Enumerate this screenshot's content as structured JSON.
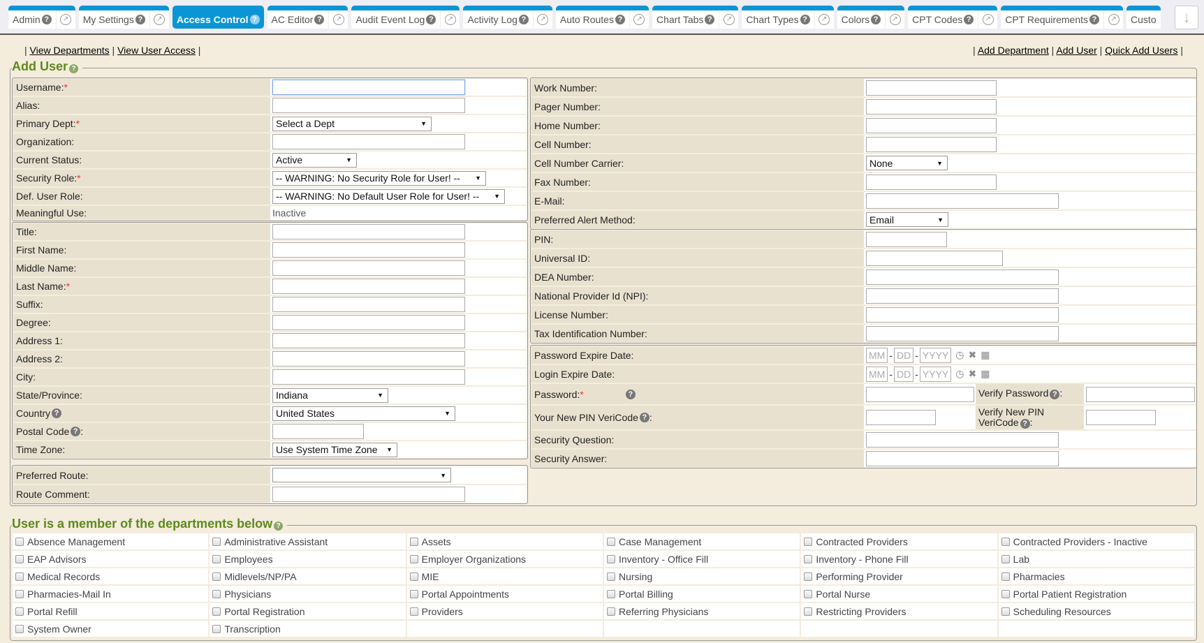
{
  "tabs": [
    {
      "label": "Admin",
      "active": false
    },
    {
      "label": "My Settings",
      "active": false
    },
    {
      "label": "Access Control",
      "active": true
    },
    {
      "label": "AC Editor",
      "active": false
    },
    {
      "label": "Audit Event Log",
      "active": false
    },
    {
      "label": "Activity Log",
      "active": false
    },
    {
      "label": "Auto Routes",
      "active": false
    },
    {
      "label": "Chart Tabs",
      "active": false
    },
    {
      "label": "Chart Types",
      "active": false
    },
    {
      "label": "Colors",
      "active": false
    },
    {
      "label": "CPT Codes",
      "active": false
    },
    {
      "label": "CPT Requirements",
      "active": false
    },
    {
      "label": "Custo",
      "active": false
    }
  ],
  "links_left": [
    "View Departments",
    "View User Access"
  ],
  "links_right": [
    "Add Department",
    "Add User",
    "Quick Add Users"
  ],
  "add_user": {
    "title": "Add User",
    "left_groups": [
      [
        {
          "id": "username",
          "label": "Username:",
          "required": true,
          "kind": "text",
          "focus": true
        },
        {
          "id": "alias",
          "label": "Alias:",
          "kind": "text"
        },
        {
          "id": "dept",
          "label": "Primary Dept:",
          "required": true,
          "kind": "select",
          "value": "Select a Dept"
        },
        {
          "id": "org",
          "label": "Organization:",
          "kind": "text"
        },
        {
          "id": "status",
          "label": "Current Status:",
          "kind": "select",
          "value": "Active"
        },
        {
          "id": "secrole",
          "label": "Security Role:",
          "required": true,
          "kind": "select",
          "value": "-- WARNING: No Security Role for User! --"
        },
        {
          "id": "defrole",
          "label": "Def. User Role:",
          "kind": "select",
          "value": "-- WARNING: No Default User Role for User! --"
        },
        {
          "id": "mu",
          "label": "Meaningful Use:",
          "kind": "static",
          "value": "Inactive"
        }
      ],
      [
        {
          "id": "title",
          "label": "Title:",
          "kind": "text"
        },
        {
          "id": "first",
          "label": "First Name:",
          "kind": "text"
        },
        {
          "id": "middle",
          "label": "Middle Name:",
          "kind": "text"
        },
        {
          "id": "last",
          "label": "Last Name:",
          "required": true,
          "kind": "text"
        },
        {
          "id": "suffix",
          "label": "Suffix:",
          "kind": "text"
        },
        {
          "id": "degree",
          "label": "Degree:",
          "kind": "text"
        },
        {
          "id": "addr1",
          "label": "Address 1:",
          "kind": "text"
        },
        {
          "id": "addr2",
          "label": "Address 2:",
          "kind": "text"
        },
        {
          "id": "city",
          "label": "City:",
          "kind": "text"
        },
        {
          "id": "state",
          "label": "State/Province:",
          "kind": "select",
          "value": "Indiana"
        },
        {
          "id": "country",
          "label": "Country",
          "help": true,
          "kind": "select",
          "value": "United States"
        },
        {
          "id": "postal",
          "label": "Postal Code",
          "help": true,
          "suffix": ":",
          "kind": "text"
        },
        {
          "id": "tz",
          "label": "Time Zone:",
          "kind": "select",
          "value": "Use System Time Zone"
        }
      ],
      [
        {
          "id": "route",
          "label": "Preferred Route:",
          "kind": "select",
          "value": ""
        },
        {
          "id": "routec",
          "label": "Route Comment:",
          "kind": "text"
        }
      ]
    ],
    "right_groups": [
      [
        {
          "id": "work",
          "label": "Work Number:",
          "kind": "text"
        },
        {
          "id": "pager",
          "label": "Pager Number:",
          "kind": "text"
        },
        {
          "id": "home",
          "label": "Home Number:",
          "kind": "text"
        },
        {
          "id": "cell",
          "label": "Cell Number:",
          "kind": "text"
        },
        {
          "id": "carrier",
          "label": "Cell Number Carrier:",
          "kind": "select",
          "value": "None"
        },
        {
          "id": "fax",
          "label": "Fax Number:",
          "kind": "text"
        },
        {
          "id": "email",
          "label": "E-Mail:",
          "kind": "text"
        },
        {
          "id": "alert",
          "label": "Preferred Alert Method:",
          "kind": "select",
          "value": "Email"
        }
      ],
      [
        {
          "id": "pin",
          "label": "PIN:",
          "kind": "text"
        },
        {
          "id": "uid",
          "label": "Universal ID:",
          "kind": "text"
        },
        {
          "id": "dea",
          "label": "DEA Number:",
          "kind": "text"
        },
        {
          "id": "npi",
          "label": "National Provider Id (NPI):",
          "kind": "text"
        },
        {
          "id": "lic",
          "label": "License Number:",
          "kind": "text"
        },
        {
          "id": "tax",
          "label": "Tax Identification Number:",
          "kind": "text"
        }
      ],
      [
        {
          "id": "pwexp",
          "label": "Password Expire Date:",
          "kind": "date",
          "ph": [
            "MM",
            "DD",
            "YYYY"
          ]
        },
        {
          "id": "loginexp",
          "label": "Login Expire Date:",
          "kind": "date",
          "ph": [
            "MM",
            "DD",
            "YYYY"
          ]
        },
        {
          "id": "pw",
          "label": "Password:",
          "required": true,
          "helpgap": true,
          "kind": "pair",
          "label2": "Verify Password",
          "help2": true
        },
        {
          "id": "veri",
          "label": "Your New PIN VeriCode",
          "help": true,
          "suffix": ":",
          "kind": "pair",
          "label2": "Verify New PIN VeriCode",
          "help2": true
        },
        {
          "id": "secq",
          "label": "Security Question:",
          "kind": "text"
        },
        {
          "id": "seca",
          "label": "Security Answer:",
          "kind": "text"
        }
      ]
    ]
  },
  "departments": {
    "title": "User is a member of the departments below",
    "items": [
      "Absence Management",
      "Administrative Assistant",
      "Assets",
      "Case Management",
      "Contracted Providers",
      "Contracted Providers - Inactive",
      "EAP Advisors",
      "Employees",
      "Employer Organizations",
      "Inventory - Office Fill",
      "Inventory - Phone Fill",
      "Lab",
      "Medical Records",
      "Midlevels/NP/PA",
      "MIE",
      "Nursing",
      "Performing Provider",
      "Pharmacies",
      "Pharmacies-Mail In",
      "Physicians",
      "Portal Appointments",
      "Portal Billing",
      "Portal Nurse",
      "Portal Patient Registration",
      "Portal Refill",
      "Portal Registration",
      "Providers",
      "Referring Physicians",
      "Restricting Providers",
      "Scheduling Resources",
      "System Owner",
      "Transcription"
    ]
  },
  "colors": {
    "tab_accent": "#0a96d6",
    "legend": "#5d8a1d",
    "background": "#f4ecdd",
    "label_bg": "#e9e1d0",
    "required": "#ee3333"
  }
}
